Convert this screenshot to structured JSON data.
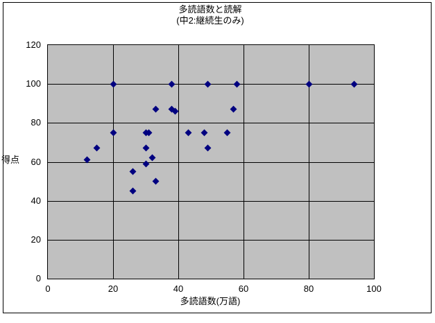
{
  "chart_data": {
    "type": "scatter",
    "title": "多読語数と読解",
    "subtitle": "(中2:継続生のみ)",
    "xlabel": "多読語数(万語)",
    "ylabel": "得点",
    "xlim": [
      0,
      100
    ],
    "ylim": [
      0,
      120
    ],
    "x_ticks": [
      0,
      20,
      40,
      60,
      80,
      100
    ],
    "y_ticks": [
      0,
      20,
      40,
      60,
      80,
      100,
      120
    ],
    "grid": true,
    "legend": false,
    "marker": "diamond",
    "colors": {
      "marker": "#000080",
      "plot_bg": "#c0c0c0",
      "gridline": "#000000",
      "border": "#000000",
      "background": "#ffffff"
    },
    "points": [
      [
        12,
        61
      ],
      [
        15,
        67
      ],
      [
        20,
        75
      ],
      [
        20,
        100
      ],
      [
        26,
        45
      ],
      [
        26,
        55
      ],
      [
        30,
        59
      ],
      [
        30,
        67
      ],
      [
        30,
        75
      ],
      [
        31,
        75
      ],
      [
        32,
        62
      ],
      [
        33,
        50
      ],
      [
        33,
        87
      ],
      [
        38,
        87
      ],
      [
        38,
        100
      ],
      [
        39,
        86
      ],
      [
        43,
        75
      ],
      [
        48,
        75
      ],
      [
        49,
        67
      ],
      [
        49,
        100
      ],
      [
        55,
        75
      ],
      [
        57,
        87
      ],
      [
        58,
        100
      ],
      [
        80,
        100
      ],
      [
        94,
        100
      ]
    ]
  }
}
